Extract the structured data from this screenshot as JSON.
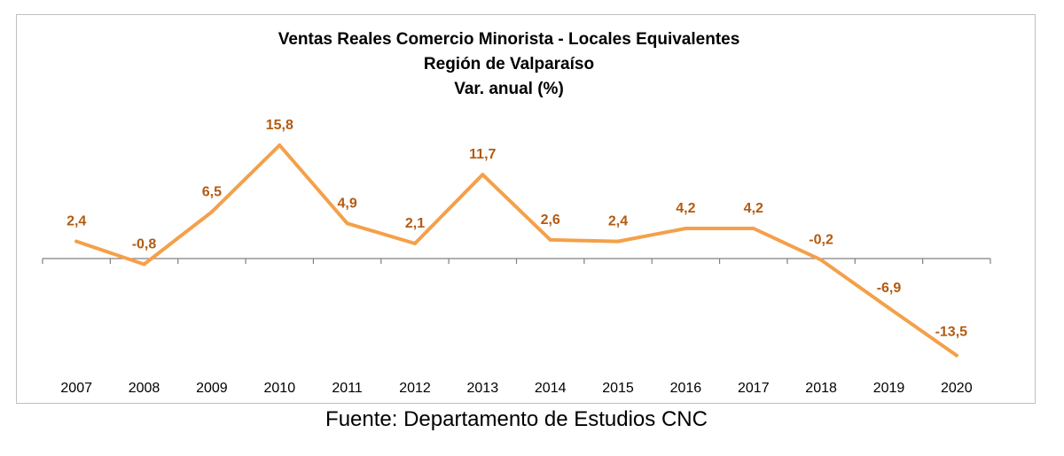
{
  "chart_data": {
    "type": "line",
    "title": [
      "Ventas Reales Comercio Minorista - Locales Equivalentes",
      "Región de Valparaíso",
      "Var. anual (%)"
    ],
    "categories": [
      "2007",
      "2008",
      "2009",
      "2010",
      "2011",
      "2012",
      "2013",
      "2014",
      "2015",
      "2016",
      "2017",
      "2018",
      "2019",
      "2020"
    ],
    "values": [
      2.4,
      -0.8,
      6.5,
      15.8,
      4.9,
      2.1,
      11.7,
      2.6,
      2.4,
      4.2,
      4.2,
      -0.2,
      -6.9,
      -13.5
    ],
    "data_labels": [
      "2,4",
      "-0,8",
      "6,5",
      "15,8",
      "4,9",
      "2,1",
      "11,7",
      "2,6",
      "2,4",
      "4,2",
      "4,2",
      "-0,2",
      "-6,9",
      "-13,5"
    ],
    "xlabel": "",
    "ylabel": "",
    "grid": false,
    "legend": "none",
    "colors": {
      "line": "#f4a04a",
      "label": "#b35a10",
      "axis": "#808080",
      "frame": "#bfbfbf"
    }
  },
  "footer": {
    "source": "Fuente: Departamento de Estudios CNC"
  }
}
